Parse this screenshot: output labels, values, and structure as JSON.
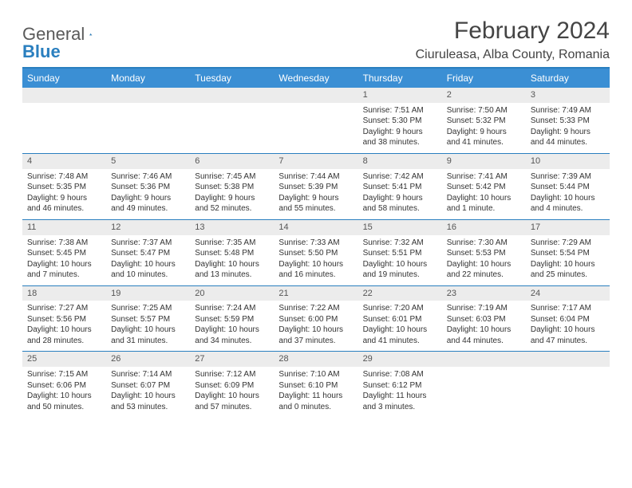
{
  "logo": {
    "text1": "General",
    "text2": "Blue"
  },
  "title": "February 2024",
  "location": "Ciuruleasa, Alba County, Romania",
  "weekdays": [
    "Sunday",
    "Monday",
    "Tuesday",
    "Wednesday",
    "Thursday",
    "Friday",
    "Saturday"
  ],
  "colors": {
    "header_bar": "#3b8fd4",
    "rule": "#2a7fbf",
    "daynum_bg": "#ececec"
  },
  "weeks": [
    [
      {
        "n": "",
        "sunrise": "",
        "sunset": "",
        "daylight": ""
      },
      {
        "n": "",
        "sunrise": "",
        "sunset": "",
        "daylight": ""
      },
      {
        "n": "",
        "sunrise": "",
        "sunset": "",
        "daylight": ""
      },
      {
        "n": "",
        "sunrise": "",
        "sunset": "",
        "daylight": ""
      },
      {
        "n": "1",
        "sunrise": "Sunrise: 7:51 AM",
        "sunset": "Sunset: 5:30 PM",
        "daylight": "Daylight: 9 hours and 38 minutes."
      },
      {
        "n": "2",
        "sunrise": "Sunrise: 7:50 AM",
        "sunset": "Sunset: 5:32 PM",
        "daylight": "Daylight: 9 hours and 41 minutes."
      },
      {
        "n": "3",
        "sunrise": "Sunrise: 7:49 AM",
        "sunset": "Sunset: 5:33 PM",
        "daylight": "Daylight: 9 hours and 44 minutes."
      }
    ],
    [
      {
        "n": "4",
        "sunrise": "Sunrise: 7:48 AM",
        "sunset": "Sunset: 5:35 PM",
        "daylight": "Daylight: 9 hours and 46 minutes."
      },
      {
        "n": "5",
        "sunrise": "Sunrise: 7:46 AM",
        "sunset": "Sunset: 5:36 PM",
        "daylight": "Daylight: 9 hours and 49 minutes."
      },
      {
        "n": "6",
        "sunrise": "Sunrise: 7:45 AM",
        "sunset": "Sunset: 5:38 PM",
        "daylight": "Daylight: 9 hours and 52 minutes."
      },
      {
        "n": "7",
        "sunrise": "Sunrise: 7:44 AM",
        "sunset": "Sunset: 5:39 PM",
        "daylight": "Daylight: 9 hours and 55 minutes."
      },
      {
        "n": "8",
        "sunrise": "Sunrise: 7:42 AM",
        "sunset": "Sunset: 5:41 PM",
        "daylight": "Daylight: 9 hours and 58 minutes."
      },
      {
        "n": "9",
        "sunrise": "Sunrise: 7:41 AM",
        "sunset": "Sunset: 5:42 PM",
        "daylight": "Daylight: 10 hours and 1 minute."
      },
      {
        "n": "10",
        "sunrise": "Sunrise: 7:39 AM",
        "sunset": "Sunset: 5:44 PM",
        "daylight": "Daylight: 10 hours and 4 minutes."
      }
    ],
    [
      {
        "n": "11",
        "sunrise": "Sunrise: 7:38 AM",
        "sunset": "Sunset: 5:45 PM",
        "daylight": "Daylight: 10 hours and 7 minutes."
      },
      {
        "n": "12",
        "sunrise": "Sunrise: 7:37 AM",
        "sunset": "Sunset: 5:47 PM",
        "daylight": "Daylight: 10 hours and 10 minutes."
      },
      {
        "n": "13",
        "sunrise": "Sunrise: 7:35 AM",
        "sunset": "Sunset: 5:48 PM",
        "daylight": "Daylight: 10 hours and 13 minutes."
      },
      {
        "n": "14",
        "sunrise": "Sunrise: 7:33 AM",
        "sunset": "Sunset: 5:50 PM",
        "daylight": "Daylight: 10 hours and 16 minutes."
      },
      {
        "n": "15",
        "sunrise": "Sunrise: 7:32 AM",
        "sunset": "Sunset: 5:51 PM",
        "daylight": "Daylight: 10 hours and 19 minutes."
      },
      {
        "n": "16",
        "sunrise": "Sunrise: 7:30 AM",
        "sunset": "Sunset: 5:53 PM",
        "daylight": "Daylight: 10 hours and 22 minutes."
      },
      {
        "n": "17",
        "sunrise": "Sunrise: 7:29 AM",
        "sunset": "Sunset: 5:54 PM",
        "daylight": "Daylight: 10 hours and 25 minutes."
      }
    ],
    [
      {
        "n": "18",
        "sunrise": "Sunrise: 7:27 AM",
        "sunset": "Sunset: 5:56 PM",
        "daylight": "Daylight: 10 hours and 28 minutes."
      },
      {
        "n": "19",
        "sunrise": "Sunrise: 7:25 AM",
        "sunset": "Sunset: 5:57 PM",
        "daylight": "Daylight: 10 hours and 31 minutes."
      },
      {
        "n": "20",
        "sunrise": "Sunrise: 7:24 AM",
        "sunset": "Sunset: 5:59 PM",
        "daylight": "Daylight: 10 hours and 34 minutes."
      },
      {
        "n": "21",
        "sunrise": "Sunrise: 7:22 AM",
        "sunset": "Sunset: 6:00 PM",
        "daylight": "Daylight: 10 hours and 37 minutes."
      },
      {
        "n": "22",
        "sunrise": "Sunrise: 7:20 AM",
        "sunset": "Sunset: 6:01 PM",
        "daylight": "Daylight: 10 hours and 41 minutes."
      },
      {
        "n": "23",
        "sunrise": "Sunrise: 7:19 AM",
        "sunset": "Sunset: 6:03 PM",
        "daylight": "Daylight: 10 hours and 44 minutes."
      },
      {
        "n": "24",
        "sunrise": "Sunrise: 7:17 AM",
        "sunset": "Sunset: 6:04 PM",
        "daylight": "Daylight: 10 hours and 47 minutes."
      }
    ],
    [
      {
        "n": "25",
        "sunrise": "Sunrise: 7:15 AM",
        "sunset": "Sunset: 6:06 PM",
        "daylight": "Daylight: 10 hours and 50 minutes."
      },
      {
        "n": "26",
        "sunrise": "Sunrise: 7:14 AM",
        "sunset": "Sunset: 6:07 PM",
        "daylight": "Daylight: 10 hours and 53 minutes."
      },
      {
        "n": "27",
        "sunrise": "Sunrise: 7:12 AM",
        "sunset": "Sunset: 6:09 PM",
        "daylight": "Daylight: 10 hours and 57 minutes."
      },
      {
        "n": "28",
        "sunrise": "Sunrise: 7:10 AM",
        "sunset": "Sunset: 6:10 PM",
        "daylight": "Daylight: 11 hours and 0 minutes."
      },
      {
        "n": "29",
        "sunrise": "Sunrise: 7:08 AM",
        "sunset": "Sunset: 6:12 PM",
        "daylight": "Daylight: 11 hours and 3 minutes."
      },
      {
        "n": "",
        "sunrise": "",
        "sunset": "",
        "daylight": ""
      },
      {
        "n": "",
        "sunrise": "",
        "sunset": "",
        "daylight": ""
      }
    ]
  ]
}
